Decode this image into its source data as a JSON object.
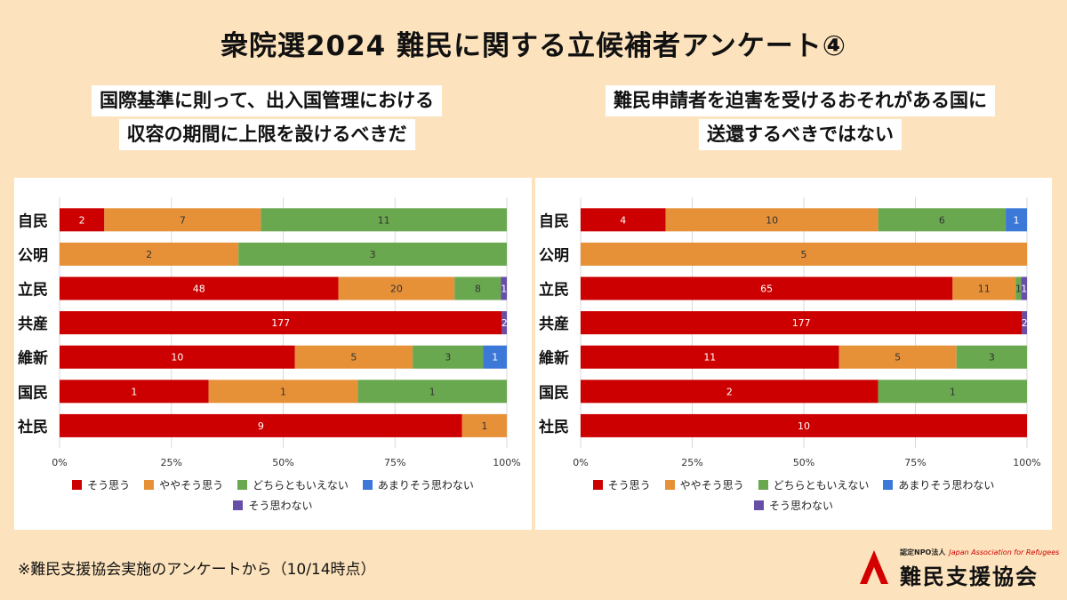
{
  "title": "衆院選2024 難民に関する立候補者アンケート④",
  "left_question": {
    "line1": "国際基準に則って、出入国管理における",
    "line2": "収容の期間に上限を設けるべきだ"
  },
  "right_question": {
    "line1": "難民申請者を迫害を受けるおそれがある国に",
    "line2": "送還するべきではない"
  },
  "footnote": "※難民支援協会実施のアンケートから（10/14時点）",
  "logo": {
    "small_text": "認定NPO法人",
    "english": "Japan Association for Refugees",
    "name": "難民支援協会"
  },
  "legend": [
    {
      "label": "そう思う",
      "color": "#cc0000"
    },
    {
      "label": "ややそう思う",
      "color": "#e69138"
    },
    {
      "label": "どちらともいえない",
      "color": "#6aa84f"
    },
    {
      "label": "あまりそう思わない",
      "color": "#3c78d8"
    },
    {
      "label": "そう思わない",
      "color": "#674ea7"
    }
  ],
  "chart_data": [
    {
      "type": "bar",
      "stacked": "percent",
      "orientation": "horizontal",
      "title": "国際基準に則って、出入国管理における収容の期間に上限を設けるべきだ",
      "categories": [
        "自民",
        "公明",
        "立民",
        "共産",
        "維新",
        "国民",
        "社民"
      ],
      "series": [
        {
          "name": "そう思う",
          "color": "#cc0000",
          "values": [
            2,
            0,
            48,
            177,
            10,
            1,
            9
          ]
        },
        {
          "name": "ややそう思う",
          "color": "#e69138",
          "values": [
            7,
            2,
            20,
            0,
            5,
            1,
            1
          ]
        },
        {
          "name": "どちらともいえない",
          "color": "#6aa84f",
          "values": [
            11,
            3,
            8,
            0,
            3,
            1,
            0
          ]
        },
        {
          "name": "あまりそう思わない",
          "color": "#3c78d8",
          "values": [
            0,
            0,
            0,
            0,
            1,
            0,
            0
          ]
        },
        {
          "name": "そう思わない",
          "color": "#674ea7",
          "values": [
            0,
            0,
            1,
            2,
            0,
            0,
            0
          ]
        }
      ],
      "xticks": [
        "0%",
        "25%",
        "50%",
        "75%",
        "100%"
      ],
      "xlim": [
        0,
        100
      ],
      "grid": true,
      "legend_position": "bottom"
    },
    {
      "type": "bar",
      "stacked": "percent",
      "orientation": "horizontal",
      "title": "難民申請者を迫害を受けるおそれがある国に送還するべきではない",
      "categories": [
        "自民",
        "公明",
        "立民",
        "共産",
        "維新",
        "国民",
        "社民"
      ],
      "series": [
        {
          "name": "そう思う",
          "color": "#cc0000",
          "values": [
            4,
            0,
            65,
            177,
            11,
            2,
            10
          ]
        },
        {
          "name": "ややそう思う",
          "color": "#e69138",
          "values": [
            10,
            5,
            11,
            0,
            5,
            0,
            0
          ]
        },
        {
          "name": "どちらともいえない",
          "color": "#6aa84f",
          "values": [
            6,
            0,
            1,
            0,
            3,
            1,
            0
          ]
        },
        {
          "name": "あまりそう思わない",
          "color": "#3c78d8",
          "values": [
            1,
            0,
            0,
            0,
            0,
            0,
            0
          ]
        },
        {
          "name": "そう思わない",
          "color": "#674ea7",
          "values": [
            0,
            0,
            1,
            2,
            0,
            0,
            0
          ]
        }
      ],
      "xticks": [
        "0%",
        "25%",
        "50%",
        "75%",
        "100%"
      ],
      "xlim": [
        0,
        100
      ],
      "grid": true,
      "legend_position": "bottom"
    }
  ]
}
